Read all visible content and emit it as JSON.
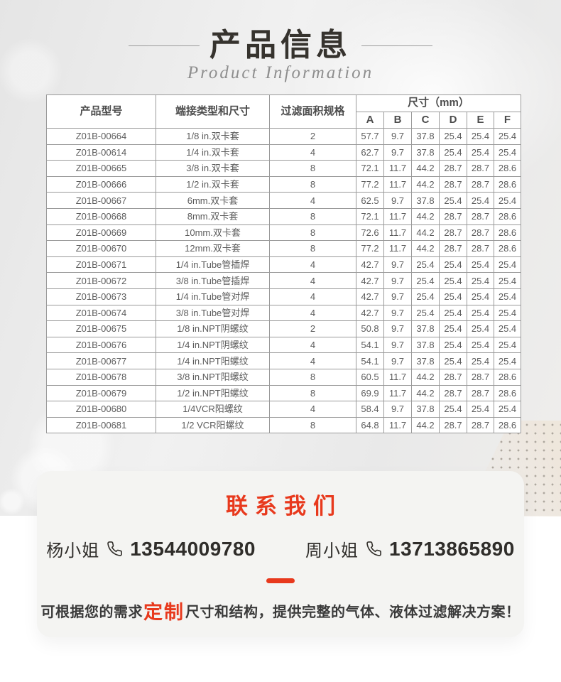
{
  "colors": {
    "accent_red": "#e8391d",
    "title_dark": "#36332e",
    "table_border": "#9a9a9a",
    "table_text": "#5c5c5c",
    "card_bg": "#f4f4f2"
  },
  "header": {
    "title": "产品信息",
    "subtitle": "Product Information"
  },
  "table": {
    "col_model": "产品型号",
    "col_termination": "端接类型和尺寸",
    "col_filter_area": "过滤面积规格",
    "col_dimensions": "尺寸（mm）",
    "dim_cols": [
      "A",
      "B",
      "C",
      "D",
      "E",
      "F"
    ],
    "rows": [
      [
        "Z01B-00664",
        "1/8 in.双卡套",
        "2",
        "57.7",
        "9.7",
        "37.8",
        "25.4",
        "25.4",
        "25.4"
      ],
      [
        "Z01B-00614",
        "1/4 in.双卡套",
        "4",
        "62.7",
        "9.7",
        "37.8",
        "25.4",
        "25.4",
        "25.4"
      ],
      [
        "Z01B-00665",
        "3/8 in.双卡套",
        "8",
        "72.1",
        "11.7",
        "44.2",
        "28.7",
        "28.7",
        "28.6"
      ],
      [
        "Z01B-00666",
        "1/2 in.双卡套",
        "8",
        "77.2",
        "11.7",
        "44.2",
        "28.7",
        "28.7",
        "28.6"
      ],
      [
        "Z01B-00667",
        "6mm.双卡套",
        "4",
        "62.5",
        "9.7",
        "37.8",
        "25.4",
        "25.4",
        "25.4"
      ],
      [
        "Z01B-00668",
        "8mm.双卡套",
        "8",
        "72.1",
        "11.7",
        "44.2",
        "28.7",
        "28.7",
        "28.6"
      ],
      [
        "Z01B-00669",
        "10mm.双卡套",
        "8",
        "72.6",
        "11.7",
        "44.2",
        "28.7",
        "28.7",
        "28.6"
      ],
      [
        "Z01B-00670",
        "12mm.双卡套",
        "8",
        "77.2",
        "11.7",
        "44.2",
        "28.7",
        "28.7",
        "28.6"
      ],
      [
        "Z01B-00671",
        "1/4 in.Tube管插焊",
        "4",
        "42.7",
        "9.7",
        "25.4",
        "25.4",
        "25.4",
        "25.4"
      ],
      [
        "Z01B-00672",
        "3/8 in.Tube管插焊",
        "4",
        "42.7",
        "9.7",
        "25.4",
        "25.4",
        "25.4",
        "25.4"
      ],
      [
        "Z01B-00673",
        "1/4 in.Tube管对焊",
        "4",
        "42.7",
        "9.7",
        "25.4",
        "25.4",
        "25.4",
        "25.4"
      ],
      [
        "Z01B-00674",
        "3/8 in.Tube管对焊",
        "4",
        "42.7",
        "9.7",
        "25.4",
        "25.4",
        "25.4",
        "25.4"
      ],
      [
        "Z01B-00675",
        "1/8 in.NPT阴螺纹",
        "2",
        "50.8",
        "9.7",
        "37.8",
        "25.4",
        "25.4",
        "25.4"
      ],
      [
        "Z01B-00676",
        "1/4 in.NPT阴螺纹",
        "4",
        "54.1",
        "9.7",
        "37.8",
        "25.4",
        "25.4",
        "25.4"
      ],
      [
        "Z01B-00677",
        "1/4 in.NPT阳螺纹",
        "4",
        "54.1",
        "9.7",
        "37.8",
        "25.4",
        "25.4",
        "25.4"
      ],
      [
        "Z01B-00678",
        "3/8 in.NPT阳螺纹",
        "8",
        "60.5",
        "11.7",
        "44.2",
        "28.7",
        "28.7",
        "28.6"
      ],
      [
        "Z01B-00679",
        "1/2 in.NPT阳螺纹",
        "8",
        "69.9",
        "11.7",
        "44.2",
        "28.7",
        "28.7",
        "28.6"
      ],
      [
        "Z01B-00680",
        "1/4VCR阳螺纹",
        "4",
        "58.4",
        "9.7",
        "37.8",
        "25.4",
        "25.4",
        "25.4"
      ],
      [
        "Z01B-00681",
        "1/2 VCR阳螺纹",
        "8",
        "64.8",
        "11.7",
        "44.2",
        "28.7",
        "28.7",
        "28.6"
      ]
    ]
  },
  "contact": {
    "title": "联系我们",
    "contacts": [
      {
        "name": "杨小姐",
        "phone": "13544009780"
      },
      {
        "name": "周小姐",
        "phone": "13713865890"
      }
    ],
    "note": {
      "prefix": "可根据您的需求",
      "highlight": "定制",
      "suffix": "尺寸和结构，提供完整的气体、液体过滤解决方案！"
    }
  }
}
